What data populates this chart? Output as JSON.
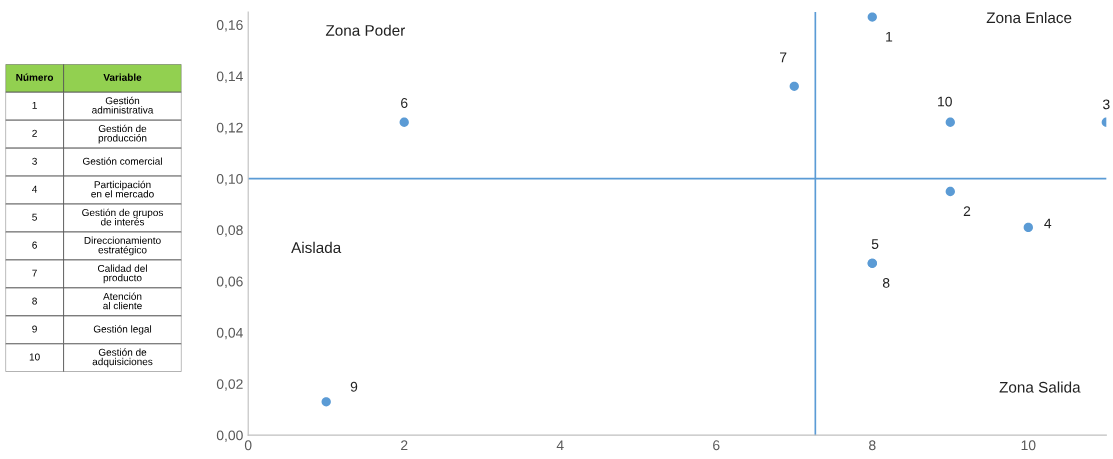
{
  "chart_data": {
    "type": "scatter",
    "marker": "circle",
    "grid": false,
    "legend": false,
    "series": [
      {
        "color": "#5b9bd5",
        "x": [
          8,
          9,
          11,
          10,
          8,
          2,
          7,
          8,
          1,
          9
        ],
        "values": [
          0.163,
          0.095,
          0.122,
          0.081,
          0.067,
          0.122,
          0.136,
          0.067,
          0.013,
          0.122
        ]
      }
    ],
    "xlim": [
      0,
      11
    ],
    "xticks": [
      0,
      2,
      4,
      6,
      8,
      10
    ],
    "ylim": [
      0,
      0.165
    ],
    "yticks": [
      {
        "value": 0,
        "label": "0,00"
      },
      {
        "value": 0.02,
        "label": "0,02"
      },
      {
        "value": 0.04,
        "label": "0,04"
      },
      {
        "value": 0.06,
        "label": "0,06"
      },
      {
        "value": 0.08,
        "label": "0,08"
      },
      {
        "value": 0.1,
        "label": "0,10"
      },
      {
        "value": 0.12,
        "label": "0,12"
      },
      {
        "value": 0.14,
        "label": "0,14"
      },
      {
        "value": 0.16,
        "label": "0,16"
      }
    ],
    "ref_lines": [
      {
        "axis": "y",
        "value": 0.1,
        "color": "#5b9bd5"
      },
      {
        "axis": "x",
        "value": 7.27,
        "color": "#5b9bd5"
      }
    ],
    "annotations": [
      "Zona Poder",
      "Zona Enlace",
      "Aislada",
      "Zona Salida",
      {
        "text": "1",
        "x": 8,
        "y": 0.163
      },
      {
        "text": "2",
        "x": 9,
        "y": 0.095
      },
      {
        "text": "3",
        "x": 11,
        "y": 0.122
      },
      {
        "text": "4",
        "x": 10,
        "y": 0.081
      },
      {
        "text": "5",
        "x": 8,
        "y": 0.067
      },
      {
        "text": "6",
        "x": 2,
        "y": 0.122
      },
      {
        "text": "7",
        "x": 7,
        "y": 0.136
      },
      {
        "text": "8",
        "x": 8,
        "y": 0.067
      },
      {
        "text": "9",
        "x": 1,
        "y": 0.013
      },
      {
        "text": "10",
        "x": 9,
        "y": 0.122
      },
      "Número",
      "Variable",
      "1",
      "Gestión administrativa",
      "2",
      "Gestión de producción",
      "3",
      "Gestión comercial",
      "4",
      "Participación en el mercado",
      "5",
      "Gestión de grupos de interés",
      "6",
      "Direccionamiento estratégico",
      "7",
      "Calidad del producto",
      "8",
      "Atención al cliente",
      "9",
      "Gestión legal",
      "10",
      "Gestión de adquisiciones"
    ]
  }
}
